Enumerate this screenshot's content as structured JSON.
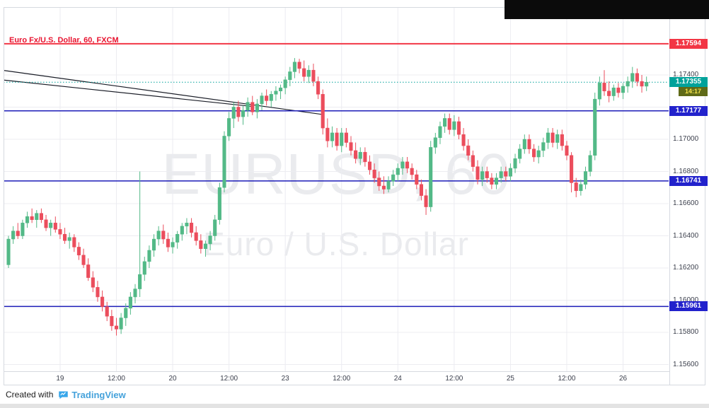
{
  "header": {
    "title": "Euro Fx/U.S. Dollar, 60, FXCM"
  },
  "watermark": {
    "line1": "EURUSD, 60",
    "line2": "Euro / U.S. Dollar"
  },
  "footer": {
    "created_with": "Created with",
    "brand": "TradingView",
    "logo_icon": "tradingview-logo"
  },
  "colors": {
    "up": "#53b987",
    "down": "#eb4d5c",
    "alert_line": "#f23645",
    "level_line": "#1c1cb8",
    "level_label": "#2222cc",
    "last_label": "#00a29a",
    "last_line": "#00a29a",
    "countdown_bg": "#5f6a18",
    "countdown_text": "#f7e34a",
    "grid": "#ececf1",
    "axis_text": "#3b3f4c",
    "trendline": "#1a1d27",
    "watermark": "rgba(90,98,125,0.13)",
    "title": "#e8132f",
    "brand": "#45a2db",
    "footer_text": "#1b1b1b"
  },
  "price_axis": {
    "tick_labels": [
      "1.17400",
      "1.17000",
      "1.16800",
      "1.16600",
      "1.16400",
      "1.16200",
      "1.16000",
      "1.15800",
      "1.15600"
    ]
  },
  "time_axis": {
    "labels": [
      {
        "text": "19",
        "bar": 11
      },
      {
        "text": "12:00",
        "bar": 23
      },
      {
        "text": "20",
        "bar": 35
      },
      {
        "text": "12:00",
        "bar": 47
      },
      {
        "text": "23",
        "bar": 59
      },
      {
        "text": "12:00",
        "bar": 71
      },
      {
        "text": "24",
        "bar": 83
      },
      {
        "text": "12:00",
        "bar": 95
      },
      {
        "text": "25",
        "bar": 107
      },
      {
        "text": "12:00",
        "bar": 119
      },
      {
        "text": "26",
        "bar": 131
      }
    ]
  },
  "price_scale_labels": [
    {
      "text": "1.17594",
      "value": 1.17594,
      "kind": "alert"
    },
    {
      "text": "1.17355",
      "value": 1.17355,
      "kind": "last",
      "countdown": "14:17"
    },
    {
      "text": "1.17177",
      "value": 1.17177,
      "kind": "level"
    },
    {
      "text": "1.16741",
      "value": 1.16741,
      "kind": "level"
    },
    {
      "text": "1.15961",
      "value": 1.15961,
      "kind": "level"
    }
  ],
  "chart_data": {
    "type": "candlestick",
    "symbol": "EURUSD",
    "description": "Euro / U.S. Dollar",
    "interval": "60",
    "exchange": "FXCM",
    "last_price": 1.17355,
    "countdown": "14:17",
    "grid_values": [
      1.174,
      1.172,
      1.17,
      1.168,
      1.166,
      1.164,
      1.162,
      1.16,
      1.158,
      1.156
    ],
    "levels": [
      {
        "value": 1.17594,
        "kind": "alert",
        "style": "solid"
      },
      {
        "value": 1.17355,
        "kind": "last",
        "style": "dashed"
      },
      {
        "value": 1.17177,
        "kind": "level",
        "style": "solid"
      },
      {
        "value": 1.16741,
        "kind": "level",
        "style": "solid"
      },
      {
        "value": 1.15961,
        "kind": "level",
        "style": "solid"
      }
    ],
    "trendlines": [
      {
        "from": {
          "bar": -1,
          "price": 1.17428
        },
        "to": {
          "bar": 67,
          "price": 1.17154
        }
      },
      {
        "from": {
          "bar": -1,
          "price": 1.17368
        },
        "to": {
          "bar": 52,
          "price": 1.17204
        }
      }
    ],
    "candles": [
      [
        1.1622,
        1.164,
        1.162,
        1.1638
      ],
      [
        1.1638,
        1.1646,
        1.1635,
        1.1643
      ],
      [
        1.1643,
        1.1648,
        1.1638,
        1.164
      ],
      [
        1.164,
        1.165,
        1.1638,
        1.1648
      ],
      [
        1.1648,
        1.1655,
        1.1645,
        1.1652
      ],
      [
        1.1652,
        1.1657,
        1.1648,
        1.165
      ],
      [
        1.165,
        1.1656,
        1.1645,
        1.1654
      ],
      [
        1.1654,
        1.1657,
        1.1648,
        1.165
      ],
      [
        1.165,
        1.1653,
        1.1643,
        1.1645
      ],
      [
        1.1645,
        1.165,
        1.164,
        1.1648
      ],
      [
        1.1648,
        1.1652,
        1.1642,
        1.1644
      ],
      [
        1.1644,
        1.1648,
        1.1638,
        1.1641
      ],
      [
        1.1641,
        1.1645,
        1.1635,
        1.1637
      ],
      [
        1.1637,
        1.1642,
        1.1632,
        1.1639
      ],
      [
        1.1639,
        1.1641,
        1.163,
        1.1633
      ],
      [
        1.1633,
        1.1636,
        1.1625,
        1.1628
      ],
      [
        1.1628,
        1.1632,
        1.162,
        1.1622
      ],
      [
        1.1622,
        1.1626,
        1.1612,
        1.1614
      ],
      [
        1.1614,
        1.1618,
        1.1605,
        1.1608
      ],
      [
        1.1608,
        1.1612,
        1.1599,
        1.1602
      ],
      [
        1.1602,
        1.1606,
        1.1593,
        1.1596
      ],
      [
        1.1596,
        1.1599,
        1.1587,
        1.159
      ],
      [
        1.159,
        1.1594,
        1.1581,
        1.1584
      ],
      [
        1.1584,
        1.1589,
        1.1578,
        1.1582
      ],
      [
        1.1582,
        1.1592,
        1.1579,
        1.1589
      ],
      [
        1.1589,
        1.1598,
        1.1584,
        1.1595
      ],
      [
        1.1595,
        1.1605,
        1.1591,
        1.1602
      ],
      [
        1.1602,
        1.161,
        1.1598,
        1.1607
      ],
      [
        1.1607,
        1.168,
        1.1602,
        1.1616
      ],
      [
        1.1616,
        1.1627,
        1.1612,
        1.1624
      ],
      [
        1.1624,
        1.1634,
        1.162,
        1.1631
      ],
      [
        1.1631,
        1.1641,
        1.1627,
        1.1638
      ],
      [
        1.1638,
        1.1646,
        1.1634,
        1.1643
      ],
      [
        1.1643,
        1.1647,
        1.1635,
        1.1638
      ],
      [
        1.1638,
        1.1642,
        1.163,
        1.1633
      ],
      [
        1.1633,
        1.1639,
        1.1629,
        1.1636
      ],
      [
        1.1636,
        1.1643,
        1.1632,
        1.1641
      ],
      [
        1.1641,
        1.1648,
        1.1637,
        1.1646
      ],
      [
        1.1646,
        1.1651,
        1.1641,
        1.1648
      ],
      [
        1.1648,
        1.1651,
        1.1639,
        1.1642
      ],
      [
        1.1642,
        1.1646,
        1.1634,
        1.1637
      ],
      [
        1.1637,
        1.1641,
        1.1629,
        1.1632
      ],
      [
        1.1632,
        1.1637,
        1.1627,
        1.1635
      ],
      [
        1.1635,
        1.1643,
        1.1631,
        1.164
      ],
      [
        1.164,
        1.1653,
        1.1637,
        1.165
      ],
      [
        1.165,
        1.1673,
        1.1647,
        1.167
      ],
      [
        1.167,
        1.1705,
        1.1667,
        1.1702
      ],
      [
        1.1702,
        1.1717,
        1.1699,
        1.1713
      ],
      [
        1.1713,
        1.1723,
        1.1707,
        1.172
      ],
      [
        1.172,
        1.1724,
        1.1711,
        1.1714
      ],
      [
        1.1714,
        1.1721,
        1.1709,
        1.1718
      ],
      [
        1.1718,
        1.1726,
        1.1714,
        1.1723
      ],
      [
        1.1723,
        1.1727,
        1.1715,
        1.1717
      ],
      [
        1.1717,
        1.1725,
        1.1713,
        1.1722
      ],
      [
        1.1722,
        1.1729,
        1.1718,
        1.1727
      ],
      [
        1.1727,
        1.1731,
        1.1721,
        1.1724
      ],
      [
        1.1724,
        1.173,
        1.172,
        1.1728
      ],
      [
        1.1728,
        1.1733,
        1.1724,
        1.173
      ],
      [
        1.173,
        1.1734,
        1.1725,
        1.1732
      ],
      [
        1.1732,
        1.1739,
        1.1728,
        1.1737
      ],
      [
        1.1737,
        1.1745,
        1.1733,
        1.1742
      ],
      [
        1.1742,
        1.17505,
        1.1738,
        1.1748
      ],
      [
        1.1748,
        1.175,
        1.1741,
        1.1744
      ],
      [
        1.1744,
        1.1749,
        1.1736,
        1.1739
      ],
      [
        1.1739,
        1.1746,
        1.1735,
        1.1743
      ],
      [
        1.1743,
        1.1747,
        1.1733,
        1.1736
      ],
      [
        1.1736,
        1.1739,
        1.1725,
        1.1728
      ],
      [
        1.1728,
        1.1731,
        1.1703,
        1.1707
      ],
      [
        1.1707,
        1.1713,
        1.1695,
        1.1699
      ],
      [
        1.1699,
        1.1708,
        1.1695,
        1.1704
      ],
      [
        1.1704,
        1.1707,
        1.1693,
        1.1696
      ],
      [
        1.1696,
        1.1707,
        1.1692,
        1.1704
      ],
      [
        1.1704,
        1.1707,
        1.1695,
        1.1698
      ],
      [
        1.1698,
        1.1702,
        1.169,
        1.1693
      ],
      [
        1.1693,
        1.1698,
        1.1685,
        1.1688
      ],
      [
        1.1688,
        1.1695,
        1.1684,
        1.1692
      ],
      [
        1.1692,
        1.1695,
        1.1683,
        1.1686
      ],
      [
        1.1686,
        1.169,
        1.1678,
        1.1681
      ],
      [
        1.1681,
        1.1685,
        1.1673,
        1.1676
      ],
      [
        1.1676,
        1.168,
        1.1668,
        1.1671
      ],
      [
        1.1671,
        1.1677,
        1.1666,
        1.1669
      ],
      [
        1.1669,
        1.1677,
        1.1667,
        1.1674
      ],
      [
        1.1674,
        1.1681,
        1.1671,
        1.1678
      ],
      [
        1.1678,
        1.1685,
        1.1674,
        1.1682
      ],
      [
        1.1682,
        1.1689,
        1.1678,
        1.1686
      ],
      [
        1.1686,
        1.1689,
        1.1679,
        1.1682
      ],
      [
        1.1682,
        1.1685,
        1.1675,
        1.1678
      ],
      [
        1.1678,
        1.1681,
        1.1669,
        1.1672
      ],
      [
        1.1672,
        1.1675,
        1.1662,
        1.1665
      ],
      [
        1.1665,
        1.1669,
        1.1653,
        1.1658
      ],
      [
        1.1658,
        1.1699,
        1.1655,
        1.1695
      ],
      [
        1.1695,
        1.1704,
        1.1691,
        1.1701
      ],
      [
        1.1701,
        1.1711,
        1.1697,
        1.1708
      ],
      [
        1.1708,
        1.1716,
        1.1704,
        1.1713
      ],
      [
        1.1713,
        1.1716,
        1.1703,
        1.1706
      ],
      [
        1.1706,
        1.1715,
        1.1702,
        1.1711
      ],
      [
        1.1711,
        1.1714,
        1.17,
        1.1703
      ],
      [
        1.1703,
        1.1707,
        1.1693,
        1.1696
      ],
      [
        1.1696,
        1.17,
        1.1687,
        1.169
      ],
      [
        1.169,
        1.1693,
        1.168,
        1.1683
      ],
      [
        1.1683,
        1.1687,
        1.1672,
        1.1675
      ],
      [
        1.1675,
        1.1683,
        1.1671,
        1.168
      ],
      [
        1.168,
        1.1683,
        1.1673,
        1.1676
      ],
      [
        1.1676,
        1.1679,
        1.1669,
        1.1672
      ],
      [
        1.1672,
        1.1679,
        1.1669,
        1.1676
      ],
      [
        1.1676,
        1.1683,
        1.1673,
        1.168
      ],
      [
        1.168,
        1.1683,
        1.1674,
        1.1677
      ],
      [
        1.1677,
        1.1685,
        1.1674,
        1.1682
      ],
      [
        1.1682,
        1.1691,
        1.1679,
        1.1688
      ],
      [
        1.1688,
        1.1697,
        1.1685,
        1.1694
      ],
      [
        1.1694,
        1.1703,
        1.1691,
        1.17
      ],
      [
        1.17,
        1.1703,
        1.1691,
        1.1694
      ],
      [
        1.1694,
        1.1697,
        1.1686,
        1.1689
      ],
      [
        1.1689,
        1.1696,
        1.1685,
        1.1693
      ],
      [
        1.1693,
        1.1701,
        1.1689,
        1.1698
      ],
      [
        1.1698,
        1.1707,
        1.1694,
        1.1704
      ],
      [
        1.1704,
        1.1707,
        1.1695,
        1.1698
      ],
      [
        1.1698,
        1.1706,
        1.1694,
        1.1703
      ],
      [
        1.1703,
        1.1706,
        1.1693,
        1.1696
      ],
      [
        1.1696,
        1.1699,
        1.1687,
        1.169
      ],
      [
        1.169,
        1.1692,
        1.1667,
        1.1673
      ],
      [
        1.1673,
        1.1676,
        1.1664,
        1.1668
      ],
      [
        1.1668,
        1.1675,
        1.1665,
        1.1672
      ],
      [
        1.1672,
        1.1683,
        1.1669,
        1.168
      ],
      [
        1.168,
        1.1693,
        1.1677,
        1.169
      ],
      [
        1.169,
        1.1729,
        1.1687,
        1.1725
      ],
      [
        1.1725,
        1.1739,
        1.1721,
        1.1735
      ],
      [
        1.1735,
        1.1743,
        1.1727,
        1.173
      ],
      [
        1.173,
        1.1736,
        1.1723,
        1.1727
      ],
      [
        1.1727,
        1.1734,
        1.1724,
        1.1732
      ],
      [
        1.1732,
        1.1735,
        1.1726,
        1.1729
      ],
      [
        1.1729,
        1.1735,
        1.1725,
        1.1733
      ],
      [
        1.1733,
        1.1739,
        1.1729,
        1.1736
      ],
      [
        1.1736,
        1.1745,
        1.1732,
        1.1741
      ],
      [
        1.1741,
        1.1744,
        1.1733,
        1.1736
      ],
      [
        1.1736,
        1.174,
        1.1729,
        1.1733
      ],
      [
        1.1733,
        1.1739,
        1.173,
        1.17355
      ]
    ]
  }
}
